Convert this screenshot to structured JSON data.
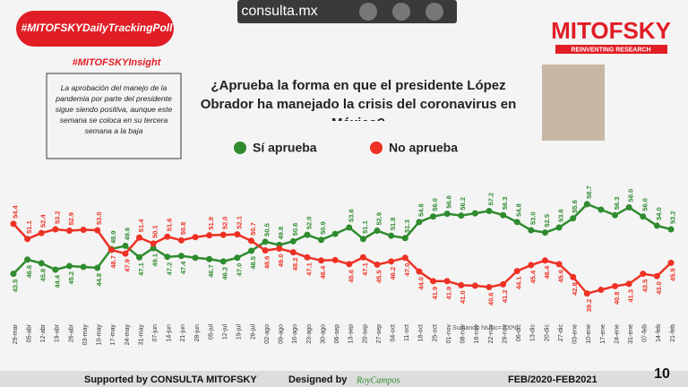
{
  "header": {
    "site": "consulta.mx",
    "hashtag": "#MITOFSKYDailyTrackingPoll",
    "insight_tag": "#MITOFSKYInsight",
    "insight_text": "La aprobación del manejo de la pandemia por parte del presidente sigue siendo positiva, aunque este semana se coloca en su tercera semana a la baja",
    "brand": "MITOFSKY",
    "brand_tagline": "REINVENTING RESEARCH"
  },
  "chart_data": {
    "type": "line",
    "title": "¿Aprueba la forma en que el presidente López Obrador ha manejado la crisis del coronavirus en México?",
    "note": "Sumando Ns/Nc=100%",
    "categories": [
      "29-mar",
      "05-abr",
      "12-abr",
      "19-abr",
      "26-abr",
      "03-may",
      "10-may",
      "17-may",
      "24-may",
      "31-may",
      "07-jun",
      "14-jun",
      "21-jun",
      "28-jun",
      "05-jul",
      "12-jul",
      "19-jul",
      "26-jul",
      "02-ago",
      "09-ago",
      "16-ago",
      "23-ago",
      "30-ago",
      "06-sep",
      "13-sep",
      "20-sep",
      "27-sep",
      "04-oct",
      "11-oct",
      "18-oct",
      "25-oct",
      "01-nov",
      "08-nov",
      "16-nov",
      "22-nov",
      "29-nov",
      "06-dic",
      "13-dic",
      "20-dic",
      "27-dic",
      "03-ene",
      "10-ene",
      "17-ene",
      "24-ene",
      "31-ene",
      "07-feb",
      "14-feb",
      "21-feb"
    ],
    "series": [
      {
        "name": "Sí aprueba",
        "color": "#2e8b2e",
        "values": [
          43.5,
          46.6,
          45.8,
          44.4,
          45.2,
          45.0,
          44.8,
          48.9,
          49.6,
          47.1,
          49.1,
          47.2,
          47.4,
          47.0,
          46.7,
          46.2,
          47.0,
          48.5,
          50.5,
          49.8,
          50.6,
          52.0,
          50.9,
          52.2,
          53.6,
          51.1,
          52.9,
          51.8,
          51.3,
          54.8,
          56.0,
          56.6,
          56.2,
          56.7,
          57.2,
          56.3,
          54.8,
          53.0,
          52.5,
          53.6,
          55.6,
          58.7,
          57.5,
          56.3,
          58.0,
          56.0,
          54.0,
          53.2
        ],
        "value_labels": [
          "43.5",
          "46.6",
          "45.8",
          "44.4",
          "45.2",
          null,
          "44.8",
          "48.9",
          "49.6",
          "47.1",
          "49.1",
          "47.2",
          "47.4",
          null,
          "46.7",
          "46.2",
          "47.0",
          "48.5",
          "50.5",
          "49.8",
          "50.6",
          "52.0",
          "50.9",
          null,
          "53.6",
          "51.1",
          "52.9",
          "51.8",
          "51.3",
          "54.8",
          "56.0",
          "56.6",
          "56.2",
          null,
          "57.2",
          "56.3",
          "54.8",
          "53.0",
          "52.5",
          "53.6",
          "55.6",
          "58.7",
          null,
          "56.3",
          "58.0",
          "56.0",
          "54.0",
          "53.2"
        ]
      },
      {
        "name": "No aprueba",
        "color": "#ee3124",
        "values": [
          54.4,
          51.1,
          52.4,
          53.2,
          52.9,
          53.1,
          53.0,
          48.7,
          47.9,
          51.4,
          50.1,
          51.6,
          50.8,
          51.5,
          51.9,
          52.0,
          52.1,
          50.7,
          48.6,
          49.0,
          48.2,
          47.1,
          46.4,
          46.5,
          45.6,
          47.1,
          45.5,
          46.2,
          47.0,
          44.0,
          41.9,
          41.9,
          41.0,
          40.9,
          40.6,
          41.2,
          44.1,
          45.4,
          46.4,
          45.6,
          42.8,
          39.2,
          40.0,
          40.8,
          41.3,
          43.5,
          43.0,
          45.9
        ],
        "value_labels": [
          "54.4",
          "51.1",
          "52.4",
          "53.2",
          "52.9",
          null,
          "53.0",
          "48.7",
          "47.9",
          "51.4",
          "50.1",
          "51.6",
          "50.8",
          null,
          "51.9",
          "52.0",
          "52.1",
          "50.7",
          "48.6",
          "49.0",
          "48.2",
          "47.1",
          "46.4",
          null,
          "45.6",
          "47.1",
          "45.5",
          "46.2",
          "47.0",
          "44.0",
          "41.9",
          "41.9",
          "41.0",
          null,
          "40.6",
          "41.2",
          "44.1",
          "45.4",
          "46.4",
          "45.6",
          "42.8",
          "39.2",
          null,
          "40.8",
          "41.3",
          "43.5",
          "43.0",
          "45.9"
        ]
      }
    ],
    "ylim": [
      36,
      62
    ]
  },
  "footer": {
    "supported": "Supported by  CONSULTA  MITOFSKY",
    "designed": "Designed by",
    "designer": "RoyCampos",
    "period": "FEB/2020-FEB2021",
    "page": "10"
  }
}
